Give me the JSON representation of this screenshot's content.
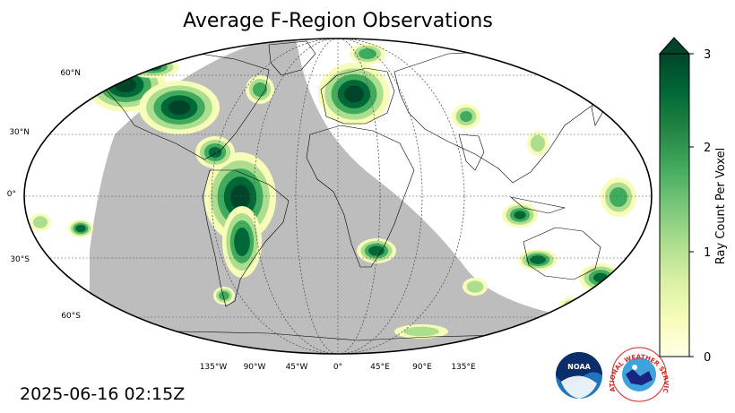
{
  "title": "Average F-Region Observations",
  "timestamp": "2025-06-16 02:15Z",
  "map": {
    "projection": "Robinson",
    "lat_labels": [
      "60°N",
      "30°N",
      "0°",
      "30°S",
      "60°S"
    ],
    "lon_labels": [
      "135°W",
      "90°W",
      "45°W",
      "0°",
      "45°E",
      "90°E",
      "135°E"
    ],
    "night_shade_color": "#bdbdbd",
    "gridlines": true
  },
  "colorbar": {
    "label": "Ray Count Per Voxel",
    "ticks": [
      "0",
      "1",
      "2",
      "3"
    ],
    "range": [
      0,
      3
    ],
    "extend": "max",
    "colormap": "YlGn",
    "colors": [
      "#ffffe5",
      "#f7fcb9",
      "#d9f0a3",
      "#addd8e",
      "#78c679",
      "#41ab5d",
      "#238443",
      "#006837",
      "#004529"
    ]
  },
  "logos": {
    "noaa": "NOAA",
    "nws": "NATIONAL WEATHER SERVICE"
  }
}
